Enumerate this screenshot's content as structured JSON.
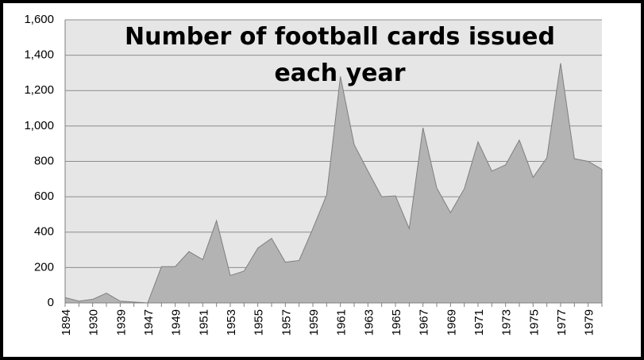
{
  "chart_data": {
    "type": "area",
    "title": "Number of football cards issued each year",
    "categories": [
      "1894",
      null,
      "1930",
      null,
      "1939",
      null,
      "1947",
      null,
      "1949",
      null,
      "1951",
      null,
      "1953",
      null,
      "1955",
      null,
      "1957",
      null,
      "1959",
      null,
      "1961",
      null,
      "1963",
      null,
      "1965",
      null,
      "1967",
      null,
      "1969",
      null,
      "1971",
      null,
      "1973",
      null,
      "1975",
      null,
      "1977",
      null,
      "1979",
      null
    ],
    "values": [
      30,
      10,
      20,
      55,
      10,
      5,
      0,
      205,
      205,
      290,
      245,
      465,
      155,
      180,
      310,
      365,
      230,
      240,
      420,
      610,
      1280,
      895,
      745,
      600,
      605,
      420,
      990,
      650,
      510,
      645,
      910,
      745,
      780,
      920,
      710,
      820,
      1355,
      815,
      800,
      755
    ],
    "color": "#b3b3b3",
    "ylim": [
      0,
      1600
    ],
    "yticks": [
      0,
      {
        "value": 200,
        "label": "200"
      },
      400,
      600,
      800,
      {
        "value": 1000,
        "label": "1,000"
      },
      {
        "value": 1200,
        "label": "1,200"
      },
      {
        "value": 1400,
        "label": "1,400"
      },
      {
        "value": 1600,
        "label": "1,600"
      }
    ],
    "grid": true
  }
}
